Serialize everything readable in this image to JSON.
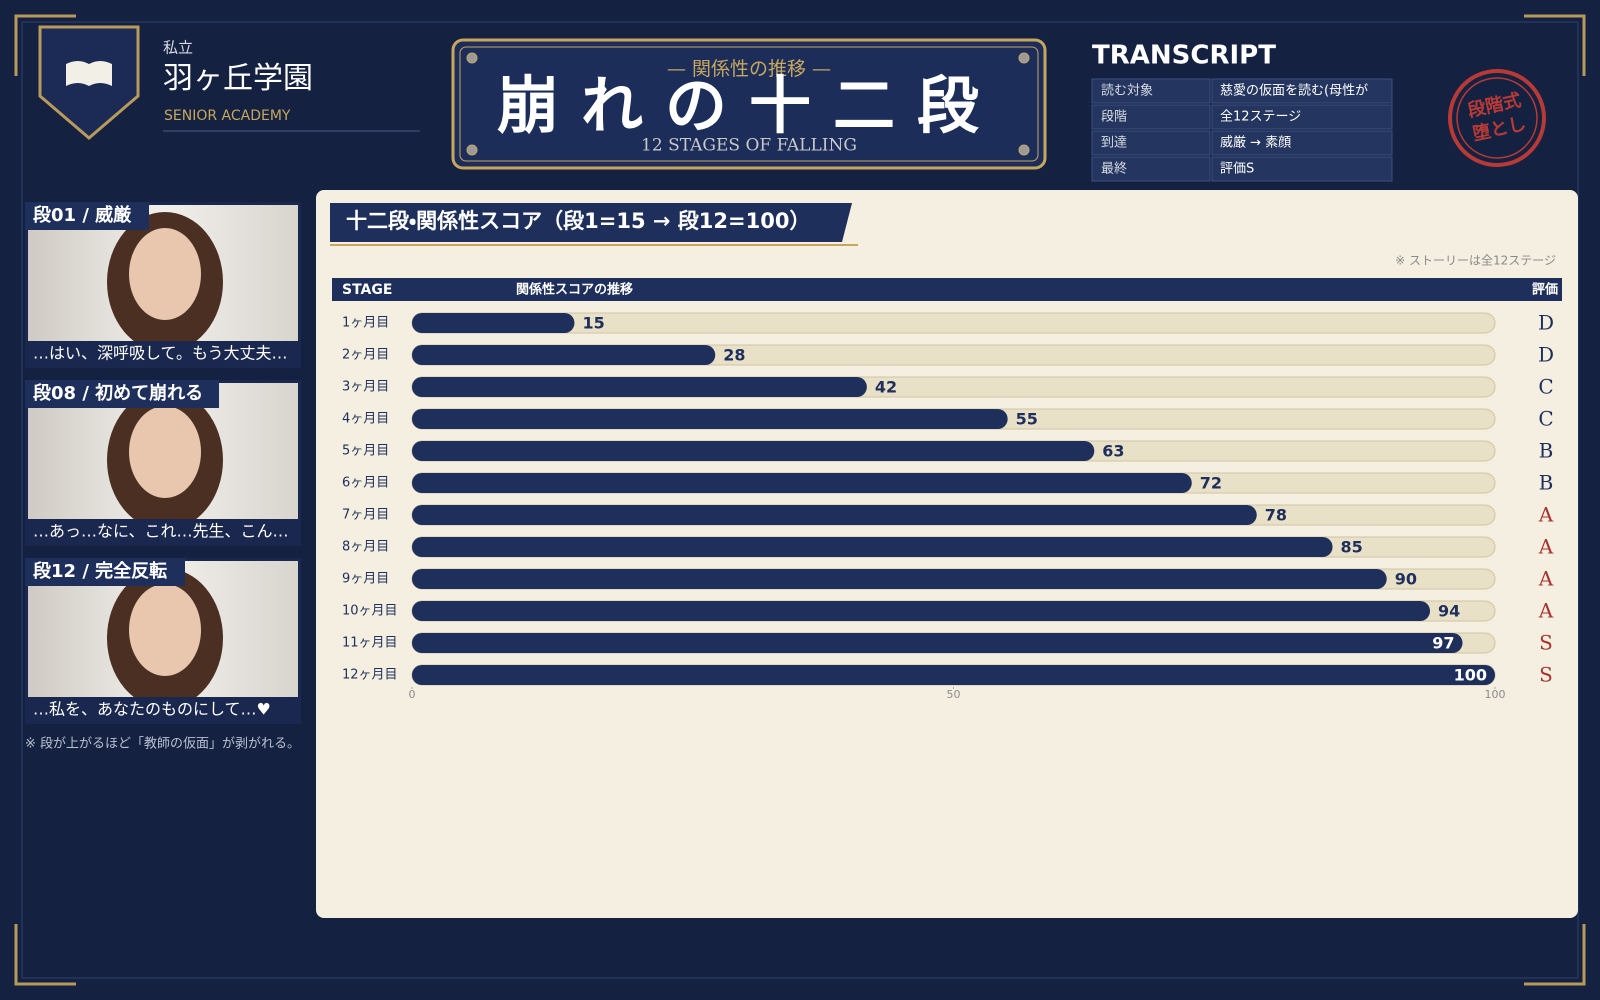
{
  "header": {
    "school_prefix": "私立",
    "school_name": "羽ヶ丘学園",
    "school_sub": "SENIOR ACADEMY"
  },
  "plaque": {
    "subtitle": "— 関係性の推移 —",
    "title": "崩れの十二段",
    "english": "12 STAGES OF FALLING"
  },
  "transcript": {
    "title": "TRANSCRIPT",
    "rows": [
      [
        "読む対象",
        "慈愛の仮面を読む(母性が"
      ],
      [
        "段階",
        "全12ステージ"
      ],
      [
        "到達",
        "威厳 → 素顔"
      ],
      [
        "最終",
        "評価S"
      ]
    ]
  },
  "stamp": [
    "段階式",
    "堕とし"
  ],
  "panels": [
    {
      "label": "段01 / 威厳",
      "caption": "…はい、深呼吸して。もう大丈夫…"
    },
    {
      "label": "段08 / 初めて崩れる",
      "caption": "…あっ…なに、これ…先生、こん…"
    },
    {
      "label": "段12 / 完全反転",
      "caption": "…私を、あなたのものにして…♥"
    }
  ],
  "panel_note": "※ 段が上がるほど「教師の仮面」が剥がれる。",
  "chart_data": {
    "type": "bar",
    "orientation": "horizontal",
    "title": "十二段・関係性スコア（段1=15 → 段12=100）",
    "note": "※ ストーリーは全12ステージ",
    "stage_header": "STAGE",
    "score_header": "関係性スコアの推移",
    "grade_header": "評価",
    "categories": [
      "1ヶ月目",
      "2ヶ月目",
      "3ヶ月目",
      "4ヶ月目",
      "5ヶ月目",
      "6ヶ月目",
      "7ヶ月目",
      "8ヶ月目",
      "9ヶ月目",
      "10ヶ月目",
      "11ヶ月目",
      "12ヶ月目"
    ],
    "values": [
      15,
      28,
      42,
      55,
      63,
      72,
      78,
      85,
      90,
      94,
      97,
      100
    ],
    "grades": [
      "D",
      "D",
      "C",
      "C",
      "B",
      "B",
      "A",
      "A",
      "A",
      "A",
      "S",
      "S"
    ],
    "grade_colors": {
      "D": "#1e2f5c",
      "C": "#1e2f5c",
      "B": "#1e2f5c",
      "A": "#a8322d",
      "S": "#a8322d"
    },
    "color": "#1e2f5c",
    "track_color": "#e9e0c8",
    "xlim": [
      0,
      100
    ],
    "xticks": [
      0,
      50,
      100
    ]
  }
}
